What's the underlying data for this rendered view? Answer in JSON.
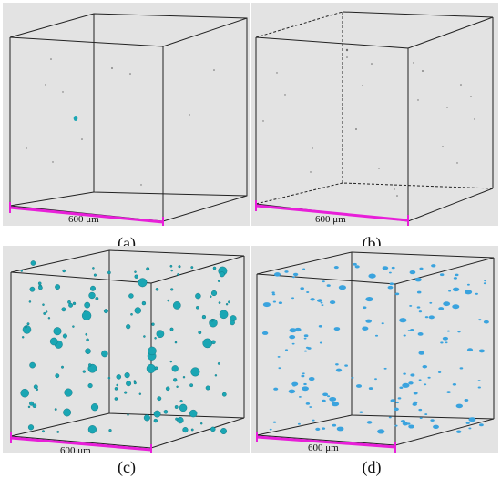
{
  "panels": [
    {
      "id": "a",
      "caption": "(a)",
      "scale_label": "600 μm",
      "particle_color": "",
      "particle_count": "few"
    },
    {
      "id": "b",
      "caption": "(b)",
      "scale_label": "600 μm",
      "particle_color": "",
      "particle_count": "few"
    },
    {
      "id": "c",
      "caption": "(c)",
      "scale_label": "600 μm",
      "particle_color": "#1aa6b4",
      "particle_count": "many"
    },
    {
      "id": "d",
      "caption": "(d)",
      "scale_label": "600 μm",
      "particle_color": "#3aa3de",
      "particle_count": "many"
    }
  ],
  "colors": {
    "background": "#e3e3e3",
    "cube_edges": "#222222",
    "scale_bar": "#e81fd9",
    "particle_teal": "#1aa6b4",
    "particle_blue": "#3aa3de",
    "speck": "#6b6b6b"
  }
}
